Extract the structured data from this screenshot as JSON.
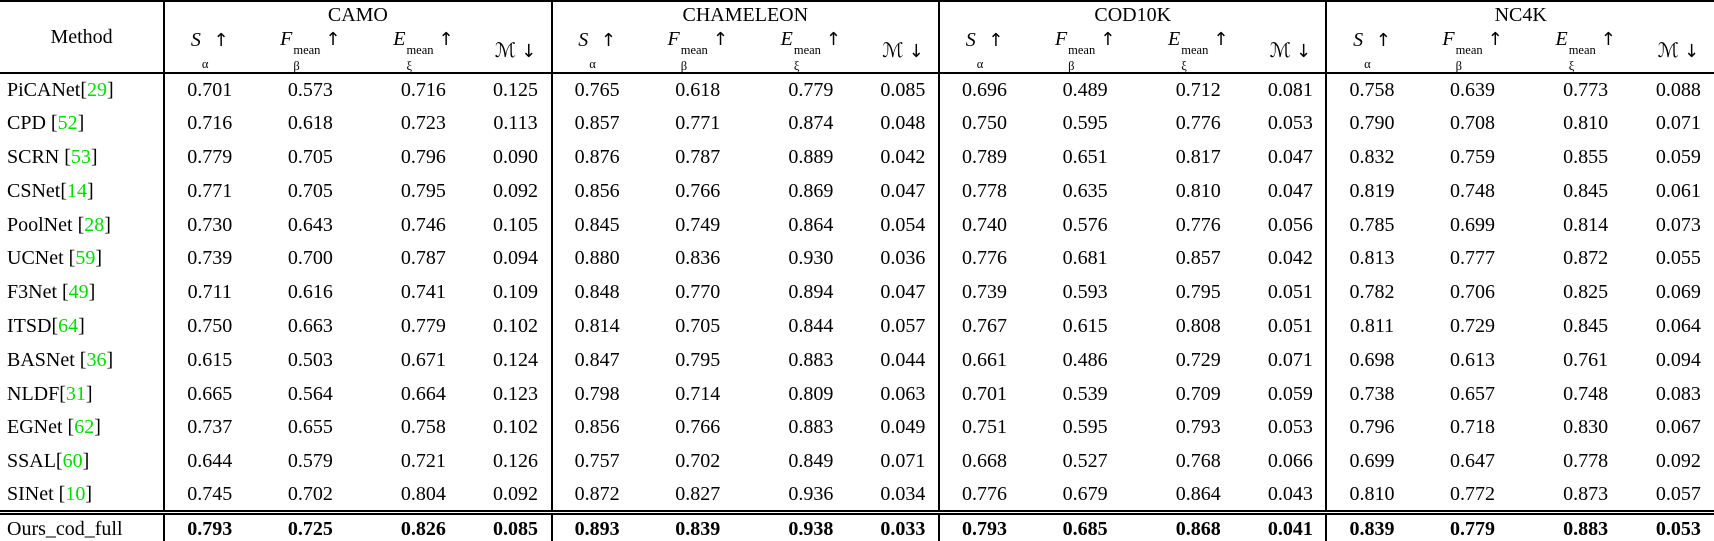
{
  "table": {
    "method_header": "Method",
    "cite_open": "[",
    "cite_close": "]",
    "colors": {
      "citation_green": "#00dd00",
      "text": "#000000",
      "background": "#ffffff"
    },
    "groups": [
      "CAMO",
      "CHAMELEON",
      "COD10K",
      "NC4K"
    ],
    "metrics": [
      {
        "name": "s-alpha",
        "base": "S",
        "sup": "",
        "sub": "α",
        "arrow": "↑"
      },
      {
        "name": "f-beta-mean",
        "base": "F",
        "sup": "mean",
        "sub": "β",
        "arrow": "↑"
      },
      {
        "name": "e-xi-mean",
        "base": "E",
        "sup": "mean",
        "sub": "ξ",
        "arrow": "↑"
      },
      {
        "name": "mae",
        "base": "ℳ",
        "sup": "",
        "sub": "",
        "arrow": "↓"
      }
    ],
    "rows": [
      {
        "method": "PiCANet",
        "cite": "29",
        "bold": false,
        "values": [
          "0.701",
          "0.573",
          "0.716",
          "0.125",
          "0.765",
          "0.618",
          "0.779",
          "0.085",
          "0.696",
          "0.489",
          "0.712",
          "0.081",
          "0.758",
          "0.639",
          "0.773",
          "0.088"
        ]
      },
      {
        "method": "CPD ",
        "cite": "52",
        "bold": false,
        "values": [
          "0.716",
          "0.618",
          "0.723",
          "0.113",
          "0.857",
          "0.771",
          "0.874",
          "0.048",
          "0.750",
          "0.595",
          "0.776",
          "0.053",
          "0.790",
          "0.708",
          "0.810",
          "0.071"
        ]
      },
      {
        "method": "SCRN ",
        "cite": "53",
        "bold": false,
        "values": [
          "0.779",
          "0.705",
          "0.796",
          "0.090",
          "0.876",
          "0.787",
          "0.889",
          "0.042",
          "0.789",
          "0.651",
          "0.817",
          "0.047",
          "0.832",
          "0.759",
          "0.855",
          "0.059"
        ]
      },
      {
        "method": "CSNet",
        "cite": "14",
        "bold": false,
        "values": [
          "0.771",
          "0.705",
          "0.795",
          "0.092",
          "0.856",
          "0.766",
          "0.869",
          "0.047",
          "0.778",
          "0.635",
          "0.810",
          "0.047",
          "0.819",
          "0.748",
          "0.845",
          "0.061"
        ]
      },
      {
        "method": "PoolNet ",
        "cite": "28",
        "bold": false,
        "values": [
          "0.730",
          "0.643",
          "0.746",
          "0.105",
          "0.845",
          "0.749",
          "0.864",
          "0.054",
          "0.740",
          "0.576",
          "0.776",
          "0.056",
          "0.785",
          "0.699",
          "0.814",
          "0.073"
        ]
      },
      {
        "method": "UCNet ",
        "cite": "59",
        "bold": false,
        "values": [
          "0.739",
          "0.700",
          "0.787",
          "0.094",
          "0.880",
          "0.836",
          "0.930",
          "0.036",
          "0.776",
          "0.681",
          "0.857",
          "0.042",
          "0.813",
          "0.777",
          "0.872",
          "0.055"
        ]
      },
      {
        "method": "F3Net ",
        "cite": "49",
        "bold": false,
        "values": [
          "0.711",
          "0.616",
          "0.741",
          "0.109",
          "0.848",
          "0.770",
          "0.894",
          "0.047",
          "0.739",
          "0.593",
          "0.795",
          "0.051",
          "0.782",
          "0.706",
          "0.825",
          "0.069"
        ]
      },
      {
        "method": "ITSD",
        "cite": "64",
        "bold": false,
        "values": [
          "0.750",
          "0.663",
          "0.779",
          "0.102",
          "0.814",
          "0.705",
          "0.844",
          "0.057",
          "0.767",
          "0.615",
          "0.808",
          "0.051",
          "0.811",
          "0.729",
          "0.845",
          "0.064"
        ]
      },
      {
        "method": "BASNet ",
        "cite": "36",
        "bold": false,
        "values": [
          "0.615",
          "0.503",
          "0.671",
          "0.124",
          "0.847",
          "0.795",
          "0.883",
          "0.044",
          "0.661",
          "0.486",
          "0.729",
          "0.071",
          "0.698",
          "0.613",
          "0.761",
          "0.094"
        ]
      },
      {
        "method": "NLDF",
        "cite": "31",
        "bold": false,
        "values": [
          "0.665",
          "0.564",
          "0.664",
          "0.123",
          "0.798",
          "0.714",
          "0.809",
          "0.063",
          "0.701",
          "0.539",
          "0.709",
          "0.059",
          "0.738",
          "0.657",
          "0.748",
          "0.083"
        ]
      },
      {
        "method": "EGNet ",
        "cite": "62",
        "bold": false,
        "values": [
          "0.737",
          "0.655",
          "0.758",
          "0.102",
          "0.856",
          "0.766",
          "0.883",
          "0.049",
          "0.751",
          "0.595",
          "0.793",
          "0.053",
          "0.796",
          "0.718",
          "0.830",
          "0.067"
        ]
      },
      {
        "method": "SSAL",
        "cite": "60",
        "bold": false,
        "values": [
          "0.644",
          "0.579",
          "0.721",
          "0.126",
          "0.757",
          "0.702",
          "0.849",
          "0.071",
          "0.668",
          "0.527",
          "0.768",
          "0.066",
          "0.699",
          "0.647",
          "0.778",
          "0.092"
        ]
      },
      {
        "method": "SINet ",
        "cite": "10",
        "bold": false,
        "values": [
          "0.745",
          "0.702",
          "0.804",
          "0.092",
          "0.872",
          "0.827",
          "0.936",
          "0.034",
          "0.776",
          "0.679",
          "0.864",
          "0.043",
          "0.810",
          "0.772",
          "0.873",
          "0.057"
        ]
      },
      {
        "method": "Ours_cod_full",
        "cite": null,
        "bold": true,
        "values": [
          "0.793",
          "0.725",
          "0.826",
          "0.085",
          "0.893",
          "0.839",
          "0.938",
          "0.033",
          "0.793",
          "0.685",
          "0.868",
          "0.041",
          "0.839",
          "0.779",
          "0.883",
          "0.053"
        ]
      }
    ]
  }
}
